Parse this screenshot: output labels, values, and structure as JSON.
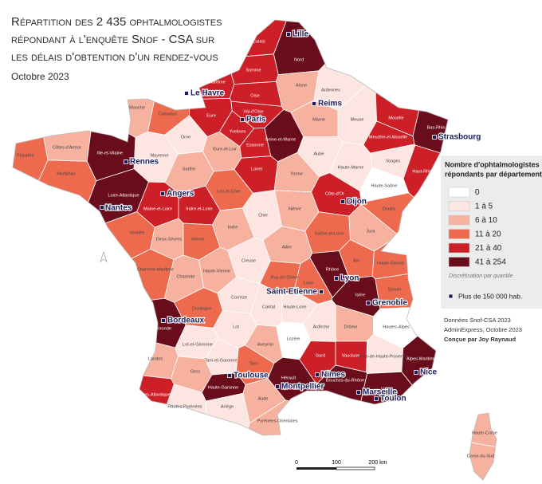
{
  "title": [
    "Répartition des 2 435 ophtalmologistes",
    "répondant à l'enquête Snof - CSA sur",
    "les délais d'obtention d'un rendez-vous"
  ],
  "date": "Octobre 2023",
  "legend": {
    "title": [
      "Nombre d'ophtalmologistes",
      "répondants par département"
    ],
    "classes": [
      {
        "label": "0",
        "color": "#ffffff"
      },
      {
        "label": "1 à 5",
        "color": "#fde6e1"
      },
      {
        "label": "6 à 10",
        "color": "#f6b19f"
      },
      {
        "label": "11 à 20",
        "color": "#ee6a4e"
      },
      {
        "label": "21 à 40",
        "color": "#cc1f27"
      },
      {
        "label": "41 à 254",
        "color": "#690c1c"
      }
    ],
    "note": "Discrétisation par quantile",
    "city_marker": "Plus de 150 000 hab."
  },
  "sources": [
    "Données Snof-CSA 2023",
    "AdminExpress, Octobre 2023",
    "Conçue par Joy Raynaud"
  ],
  "scale": [
    "0",
    "100",
    "200 km"
  ],
  "departments": [
    {
      "name": "Pas-de-Calais",
      "color": "#cc1f27"
    },
    {
      "name": "Nord",
      "color": "#690c1c"
    },
    {
      "name": "Somme",
      "color": "#cc1f27"
    },
    {
      "name": "Seine-Maritime",
      "color": "#cc1f27"
    },
    {
      "name": "Aisne",
      "color": "#f6b19f"
    },
    {
      "name": "Ardennes",
      "color": "#fde6e1"
    },
    {
      "name": "Oise",
      "color": "#cc1f27"
    },
    {
      "name": "Manche",
      "color": "#f6b19f"
    },
    {
      "name": "Calvados",
      "color": "#ee6a4e"
    },
    {
      "name": "Eure",
      "color": "#cc1f27"
    },
    {
      "name": "Val-d'Oise",
      "color": "#cc1f27"
    },
    {
      "name": "Marne",
      "color": "#f6b19f"
    },
    {
      "name": "Meuse",
      "color": "#fde6e1"
    },
    {
      "name": "Moselle",
      "color": "#cc1f27"
    },
    {
      "name": "Bas-Rhin",
      "color": "#690c1c"
    },
    {
      "name": "Yvelines",
      "color": "#cc1f27"
    },
    {
      "name": "Essonne",
      "color": "#cc1f27"
    },
    {
      "name": "Seine-et-Marne",
      "color": "#690c1c"
    },
    {
      "name": "Meurthe-et-Moselle",
      "color": "#cc1f27"
    },
    {
      "name": "Orne",
      "color": "#fde6e1"
    },
    {
      "name": "Eure-et-Loir",
      "color": "#f6b19f"
    },
    {
      "name": "Côtes-d'Armor",
      "color": "#f6b19f"
    },
    {
      "name": "Finistère",
      "color": "#ee6a4e"
    },
    {
      "name": "Ille-et-Vilaine",
      "color": "#690c1c"
    },
    {
      "name": "Mayenne",
      "color": "#fde6e1"
    },
    {
      "name": "Aube",
      "color": "#fde6e1"
    },
    {
      "name": "Haute-Marne",
      "color": "#fde6e1"
    },
    {
      "name": "Vosges",
      "color": "#fde6e1"
    },
    {
      "name": "Morbihan",
      "color": "#ee6a4e"
    },
    {
      "name": "Sarthe",
      "color": "#f6b19f"
    },
    {
      "name": "Loiret",
      "color": "#cc1f27"
    },
    {
      "name": "Yonne",
      "color": "#f6b19f"
    },
    {
      "name": "Haut-Rhin",
      "color": "#cc1f27"
    },
    {
      "name": "Haute-Saône",
      "color": "#ffffff"
    },
    {
      "name": "Loire-Atlantique",
      "color": "#690c1c"
    },
    {
      "name": "Loir-et-Cher",
      "color": "#ee6a4e"
    },
    {
      "name": "Côte-d'Or",
      "color": "#cc1f27"
    },
    {
      "name": "Maine-et-Loire",
      "color": "#cc1f27"
    },
    {
      "name": "Indre-et-Loire",
      "color": "#cc1f27"
    },
    {
      "name": "Cher",
      "color": "#fde6e1"
    },
    {
      "name": "Nièvre",
      "color": "#f6b19f"
    },
    {
      "name": "Doubs",
      "color": "#ee6a4e"
    },
    {
      "name": "Vendée",
      "color": "#ee6a4e"
    },
    {
      "name": "Deux-Sèvres",
      "color": "#f6b19f"
    },
    {
      "name": "Indre",
      "color": "#f6b19f"
    },
    {
      "name": "Jura",
      "color": "#f6b19f"
    },
    {
      "name": "Saône-et-Loire",
      "color": "#ee6a4e"
    },
    {
      "name": "Vienne",
      "color": "#ee6a4e"
    },
    {
      "name": "Allier",
      "color": "#f6b19f"
    },
    {
      "name": "Ain",
      "color": "#ee6a4e"
    },
    {
      "name": "Haute-Savoie",
      "color": "#ee6a4e"
    },
    {
      "name": "Charente-Maritime",
      "color": "#ee6a4e"
    },
    {
      "name": "Creuse",
      "color": "#fde6e1"
    },
    {
      "name": "Haute-Vienne",
      "color": "#f6b19f"
    },
    {
      "name": "Rhône",
      "color": "#690c1c"
    },
    {
      "name": "Loire",
      "color": "#ee6a4e"
    },
    {
      "name": "Puy-de-Dôme",
      "color": "#ee6a4e"
    },
    {
      "name": "Charente",
      "color": "#f6b19f"
    },
    {
      "name": "Savoie",
      "color": "#ee6a4e"
    },
    {
      "name": "Isère",
      "color": "#690c1c"
    },
    {
      "name": "Corrèze",
      "color": "#fde6e1"
    },
    {
      "name": "Haute-Loire",
      "color": "#fde6e1"
    },
    {
      "name": "Cantal",
      "color": "#fde6e1"
    },
    {
      "name": "Dordogne",
      "color": "#ee6a4e"
    },
    {
      "name": "Drôme",
      "color": "#f6b19f"
    },
    {
      "name": "Ardèche",
      "color": "#fde6e1"
    },
    {
      "name": "Hautes-Alpes",
      "color": "#ffffff"
    },
    {
      "name": "Gironde",
      "color": "#690c1c"
    },
    {
      "name": "Lot",
      "color": "#fde6e1"
    },
    {
      "name": "Lozère",
      "color": "#ffffff"
    },
    {
      "name": "Aveyron",
      "color": "#f6b19f"
    },
    {
      "name": "Lot-et-Garonne",
      "color": "#fde6e1"
    },
    {
      "name": "Alpes-de-Haute-Provence",
      "color": "#fde6e1"
    },
    {
      "name": "Landes",
      "color": "#f6b19f"
    },
    {
      "name": "Tarn-et-Garonne",
      "color": "#fde6e1"
    },
    {
      "name": "Tarn",
      "color": "#ee6a4e"
    },
    {
      "name": "Gard",
      "color": "#cc1f27"
    },
    {
      "name": "Vaucluse",
      "color": "#cc1f27"
    },
    {
      "name": "Alpes-Maritimes",
      "color": "#690c1c"
    },
    {
      "name": "Gers",
      "color": "#f6b19f"
    },
    {
      "name": "Hérault",
      "color": "#690c1c"
    },
    {
      "name": "Bouches-du-Rhône",
      "color": "#690c1c"
    },
    {
      "name": "Var",
      "color": "#690c1c"
    },
    {
      "name": "Haute-Garonne",
      "color": "#690c1c"
    },
    {
      "name": "Pyrénées-Atlantiques",
      "color": "#cc1f27"
    },
    {
      "name": "Aude",
      "color": "#f6b19f"
    },
    {
      "name": "Hautes-Pyrénées",
      "color": "#fde6e1"
    },
    {
      "name": "Ariège",
      "color": "#fde6e1"
    },
    {
      "name": "Pyrénées-Orientales",
      "color": "#f6b19f"
    },
    {
      "name": "Haute-Corse",
      "color": "#f6b19f"
    },
    {
      "name": "Corse-du-Sud",
      "color": "#f6b19f"
    }
  ],
  "cities": [
    "Lille",
    "Le Havre",
    "Reims",
    "Paris",
    "Strasbourg",
    "Rennes",
    "Angers",
    "Dijon",
    "Nantes",
    "Lyon",
    "Saint-Etienne",
    "Grenoble",
    "Bordeaux",
    "Toulouse",
    "Montpellier",
    "Nimes",
    "Nice",
    "Marseille",
    "Toulon"
  ]
}
